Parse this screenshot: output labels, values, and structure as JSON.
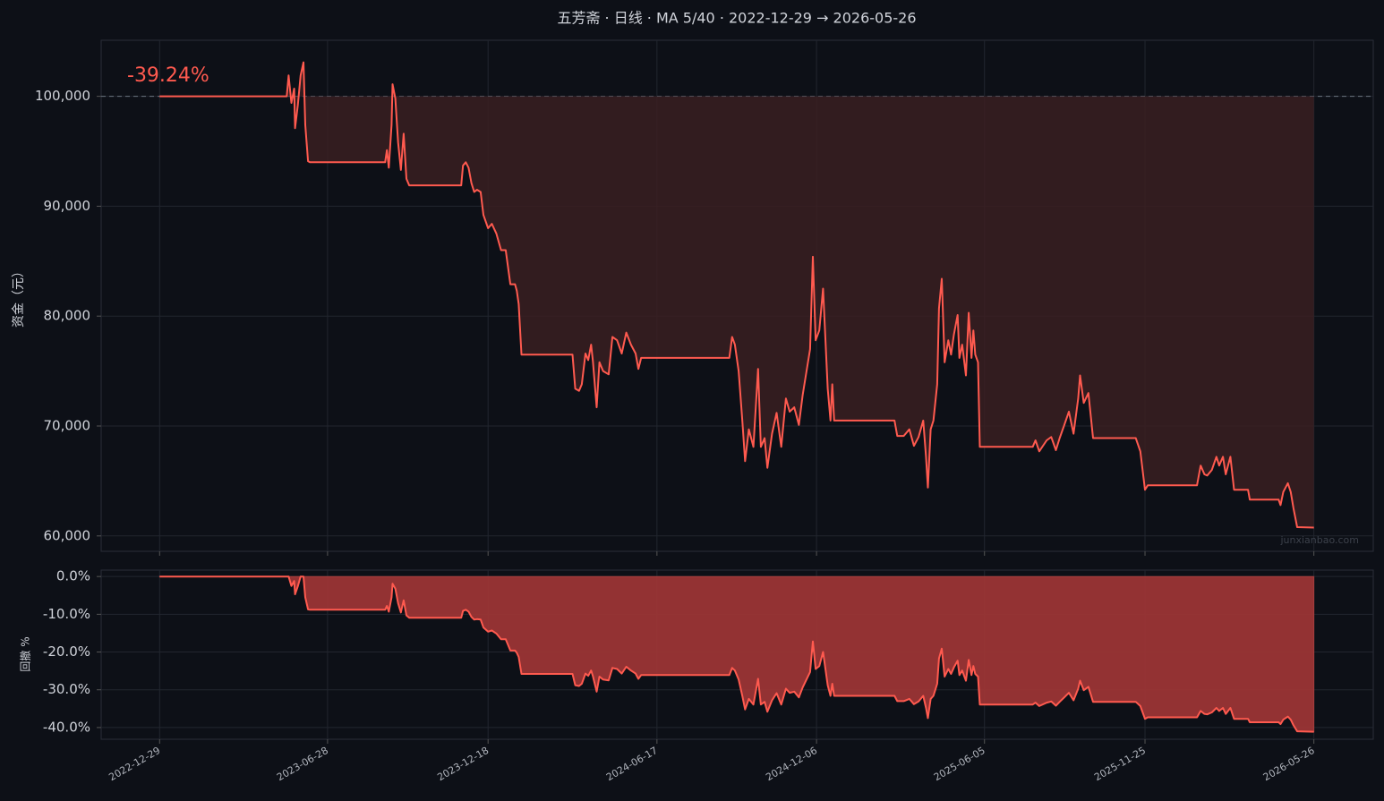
{
  "chart_data": [
    {
      "type": "area",
      "title": "五芳斋 · 日线 · MA 5/40 · 2022-12-29 → 2026-05-26",
      "ylabel": "资金（元）",
      "annotation": "-39.24%",
      "watermark": "junxianbao.com",
      "baseline": 100000,
      "grid": true,
      "xlim": [
        "2022-10-27",
        "2026-07-29"
      ],
      "ylim": [
        58600,
        105100
      ],
      "xticks": [
        "2022-12-29",
        "2023-06-28",
        "2023-12-18",
        "2024-06-17",
        "2024-12-06",
        "2025-06-05",
        "2025-11-25",
        "2026-05-26"
      ],
      "yticks": [
        {
          "value": 60000,
          "label": "60,000"
        },
        {
          "value": 70000,
          "label": "70,000"
        },
        {
          "value": 80000,
          "label": "80,000"
        },
        {
          "value": 90000,
          "label": "90,000"
        },
        {
          "value": 100000,
          "label": "100,000"
        }
      ],
      "x": [
        "2022-12-29",
        "2023-05-15",
        "2023-05-17",
        "2023-05-20",
        "2023-05-23",
        "2023-05-24",
        "2023-05-27",
        "2023-05-30",
        "2023-06-02",
        "2023-06-04",
        "2023-06-07",
        "2023-06-09",
        "2023-08-29",
        "2023-08-31",
        "2023-09-02",
        "2023-09-05",
        "2023-09-06",
        "2023-09-09",
        "2023-09-12",
        "2023-09-15",
        "2023-09-18",
        "2023-09-21",
        "2023-09-24",
        "2023-11-19",
        "2023-11-21",
        "2023-11-24",
        "2023-11-27",
        "2023-11-30",
        "2023-12-03",
        "2023-12-06",
        "2023-12-10",
        "2023-12-13",
        "2023-12-18",
        "2023-12-22",
        "2023-12-27",
        "2024-01-01",
        "2024-01-06",
        "2024-01-11",
        "2024-01-16",
        "2024-01-18",
        "2024-01-20",
        "2024-01-23",
        "2024-03-18",
        "2024-03-21",
        "2024-03-25",
        "2024-03-28",
        "2024-04-01",
        "2024-04-04",
        "2024-04-07",
        "2024-04-09",
        "2024-04-13",
        "2024-04-16",
        "2024-04-20",
        "2024-04-26",
        "2024-04-30",
        "2024-05-05",
        "2024-05-10",
        "2024-05-15",
        "2024-05-20",
        "2024-05-25",
        "2024-05-28",
        "2024-05-31",
        "2024-06-03",
        "2024-09-03",
        "2024-09-06",
        "2024-09-09",
        "2024-09-13",
        "2024-09-17",
        "2024-09-20",
        "2024-09-24",
        "2024-09-29",
        "2024-10-04",
        "2024-10-07",
        "2024-10-11",
        "2024-10-14",
        "2024-10-19",
        "2024-10-24",
        "2024-10-29",
        "2024-11-03",
        "2024-11-07",
        "2024-11-12",
        "2024-11-17",
        "2024-11-21",
        "2024-11-29",
        "2024-12-02",
        "2024-12-05",
        "2024-12-09",
        "2024-12-13",
        "2024-12-18",
        "2024-12-21",
        "2024-12-23",
        "2024-12-25",
        "2025-02-28",
        "2025-03-03",
        "2025-03-10",
        "2025-03-16",
        "2025-03-21",
        "2025-03-26",
        "2025-03-31",
        "2025-04-03",
        "2025-04-05",
        "2025-04-08",
        "2025-04-11",
        "2025-04-15",
        "2025-04-17",
        "2025-04-20",
        "2025-04-23",
        "2025-04-27",
        "2025-04-30",
        "2025-05-03",
        "2025-05-07",
        "2025-05-09",
        "2025-05-12",
        "2025-05-16",
        "2025-05-19",
        "2025-05-22",
        "2025-05-24",
        "2025-05-26",
        "2025-05-29",
        "2025-05-31",
        "2025-07-27",
        "2025-07-30",
        "2025-08-03",
        "2025-08-11",
        "2025-08-16",
        "2025-08-21",
        "2025-08-25",
        "2025-08-30",
        "2025-09-04",
        "2025-09-09",
        "2025-09-14",
        "2025-09-16",
        "2025-09-20",
        "2025-09-25",
        "2025-09-30",
        "2025-11-15",
        "2025-11-20",
        "2025-11-25",
        "2025-11-28",
        "2026-01-20",
        "2026-01-24",
        "2026-01-28",
        "2026-01-31",
        "2026-02-05",
        "2026-02-10",
        "2026-02-13",
        "2026-02-17",
        "2026-02-20",
        "2026-02-25",
        "2026-03-01",
        "2026-03-16",
        "2026-03-18",
        "2026-04-18",
        "2026-04-20",
        "2026-04-23",
        "2026-04-28",
        "2026-05-01",
        "2026-05-04",
        "2026-05-08",
        "2026-05-26"
      ],
      "series": [
        {
          "color": "#ff5a4f",
          "fill": "#3a1e21",
          "values": [
            100000,
            100000,
            101900,
            99400,
            100700,
            97100,
            99200,
            101900,
            103100,
            97400,
            94100,
            94000,
            94000,
            95100,
            93500,
            97400,
            101100,
            99800,
            95800,
            93300,
            96600,
            92500,
            91900,
            91900,
            93700,
            94000,
            93500,
            92100,
            91300,
            91500,
            91300,
            89200,
            88000,
            88400,
            87500,
            86000,
            86000,
            82900,
            82900,
            82300,
            81100,
            76500,
            76500,
            73400,
            73200,
            73800,
            76600,
            76000,
            77400,
            75900,
            71700,
            75800,
            75000,
            74700,
            78100,
            77800,
            76600,
            78500,
            77400,
            76600,
            75200,
            76200,
            76200,
            76200,
            78100,
            77400,
            75000,
            70500,
            66800,
            69700,
            68100,
            75200,
            68100,
            68900,
            66200,
            69300,
            71200,
            68100,
            72500,
            71300,
            71700,
            70100,
            72800,
            77000,
            85400,
            77800,
            78700,
            82500,
            73400,
            70500,
            73800,
            70500,
            70500,
            69100,
            69100,
            69700,
            68200,
            69000,
            70500,
            67200,
            64400,
            69700,
            70500,
            73800,
            80700,
            83400,
            75800,
            77800,
            76500,
            78300,
            80100,
            76200,
            77400,
            74600,
            80300,
            76200,
            78700,
            76500,
            75800,
            68100,
            68100,
            68700,
            67700,
            68700,
            69000,
            67800,
            68900,
            70100,
            71300,
            69300,
            72500,
            74600,
            72100,
            73000,
            68900,
            68900,
            67700,
            64200,
            64600,
            64600,
            66400,
            65600,
            65500,
            66000,
            67200,
            66400,
            67200,
            65600,
            67200,
            64200,
            64200,
            63300,
            63300,
            62800,
            64000,
            64800,
            64000,
            62500,
            60800,
            60760
          ]
        }
      ]
    },
    {
      "type": "area",
      "ylabel": "回撤 %",
      "baseline": 0,
      "grid": true,
      "xlim": [
        "2022-10-27",
        "2026-07-29"
      ],
      "ylim": [
        -43.1,
        1.7
      ],
      "yticks": [
        {
          "value": -40,
          "label": "-40.0%"
        },
        {
          "value": -30,
          "label": "-30.0%"
        },
        {
          "value": -20,
          "label": "-20.0%"
        },
        {
          "value": -10,
          "label": "-10.0%"
        },
        {
          "value": 0,
          "label": "0.0%"
        }
      ],
      "x": [
        "2022-12-29",
        "2023-05-15",
        "2023-05-17",
        "2023-05-20",
        "2023-05-23",
        "2023-05-24",
        "2023-05-27",
        "2023-05-30",
        "2023-06-02",
        "2023-06-04",
        "2023-06-07",
        "2023-06-09",
        "2023-08-29",
        "2023-08-31",
        "2023-09-02",
        "2023-09-05",
        "2023-09-06",
        "2023-09-09",
        "2023-09-12",
        "2023-09-15",
        "2023-09-18",
        "2023-09-21",
        "2023-09-24",
        "2023-11-19",
        "2023-11-21",
        "2023-11-24",
        "2023-11-27",
        "2023-11-30",
        "2023-12-03",
        "2023-12-06",
        "2023-12-10",
        "2023-12-13",
        "2023-12-18",
        "2023-12-22",
        "2023-12-27",
        "2024-01-01",
        "2024-01-06",
        "2024-01-11",
        "2024-01-16",
        "2024-01-18",
        "2024-01-20",
        "2024-01-23",
        "2024-03-18",
        "2024-03-21",
        "2024-03-25",
        "2024-03-28",
        "2024-04-01",
        "2024-04-04",
        "2024-04-07",
        "2024-04-09",
        "2024-04-13",
        "2024-04-16",
        "2024-04-20",
        "2024-04-26",
        "2024-04-30",
        "2024-05-05",
        "2024-05-10",
        "2024-05-15",
        "2024-05-20",
        "2024-05-25",
        "2024-05-28",
        "2024-05-31",
        "2024-06-03",
        "2024-09-03",
        "2024-09-06",
        "2024-09-09",
        "2024-09-13",
        "2024-09-17",
        "2024-09-20",
        "2024-09-24",
        "2024-09-29",
        "2024-10-04",
        "2024-10-07",
        "2024-10-11",
        "2024-10-14",
        "2024-10-19",
        "2024-10-24",
        "2024-10-29",
        "2024-11-03",
        "2024-11-07",
        "2024-11-12",
        "2024-11-17",
        "2024-11-21",
        "2024-11-29",
        "2024-12-02",
        "2024-12-05",
        "2024-12-09",
        "2024-12-13",
        "2024-12-18",
        "2024-12-21",
        "2024-12-23",
        "2024-12-25",
        "2025-02-28",
        "2025-03-03",
        "2025-03-10",
        "2025-03-16",
        "2025-03-21",
        "2025-03-26",
        "2025-03-31",
        "2025-04-03",
        "2025-04-05",
        "2025-04-08",
        "2025-04-11",
        "2025-04-15",
        "2025-04-17",
        "2025-04-20",
        "2025-04-23",
        "2025-04-27",
        "2025-04-30",
        "2025-05-03",
        "2025-05-07",
        "2025-05-09",
        "2025-05-12",
        "2025-05-16",
        "2025-05-19",
        "2025-05-22",
        "2025-05-24",
        "2025-05-26",
        "2025-05-29",
        "2025-05-31",
        "2025-07-27",
        "2025-07-30",
        "2025-08-03",
        "2025-08-11",
        "2025-08-16",
        "2025-08-21",
        "2025-08-25",
        "2025-08-30",
        "2025-09-04",
        "2025-09-09",
        "2025-09-14",
        "2025-09-16",
        "2025-09-20",
        "2025-09-25",
        "2025-09-30",
        "2025-11-15",
        "2025-11-20",
        "2025-11-25",
        "2025-11-28",
        "2026-01-20",
        "2026-01-24",
        "2026-01-28",
        "2026-01-31",
        "2026-02-05",
        "2026-02-10",
        "2026-02-13",
        "2026-02-17",
        "2026-02-20",
        "2026-02-25",
        "2026-03-01",
        "2026-03-16",
        "2026-03-18",
        "2026-04-18",
        "2026-04-20",
        "2026-04-23",
        "2026-04-28",
        "2026-05-01",
        "2026-05-04",
        "2026-05-08",
        "2026-05-26"
      ],
      "series": [
        {
          "color": "#ff5a4f",
          "fill": "#9b3535",
          "values": [
            0,
            0,
            0,
            -2.5,
            -1.2,
            -4.7,
            -2.6,
            0,
            0,
            -5.5,
            -8.7,
            -8.8,
            -8.8,
            -7.8,
            -9.3,
            -5.5,
            -1.9,
            -3.2,
            -7.1,
            -9.5,
            -6.3,
            -10.3,
            -10.9,
            -10.9,
            -9.1,
            -8.8,
            -9.3,
            -10.7,
            -11.4,
            -11.3,
            -11.4,
            -13.5,
            -14.6,
            -14.3,
            -15.1,
            -16.6,
            -16.6,
            -19.6,
            -19.6,
            -20.2,
            -21.3,
            -25.8,
            -25.8,
            -28.8,
            -29.0,
            -28.4,
            -25.7,
            -26.3,
            -24.9,
            -26.4,
            -30.5,
            -26.5,
            -27.3,
            -27.5,
            -24.2,
            -24.5,
            -25.7,
            -23.9,
            -24.9,
            -25.7,
            -27.1,
            -26.1,
            -26.1,
            -26.1,
            -24.2,
            -24.9,
            -27.3,
            -31.6,
            -35.2,
            -32.4,
            -33.9,
            -27.1,
            -33.9,
            -33.2,
            -35.8,
            -32.8,
            -30.9,
            -33.9,
            -29.7,
            -30.8,
            -30.5,
            -32.0,
            -29.4,
            -25.3,
            -17.2,
            -24.5,
            -23.7,
            -20.0,
            -28.8,
            -31.6,
            -28.4,
            -31.6,
            -31.6,
            -33.0,
            -33.0,
            -32.4,
            -33.8,
            -33.1,
            -31.6,
            -34.8,
            -37.5,
            -32.4,
            -31.6,
            -28.4,
            -21.7,
            -19.1,
            -26.5,
            -24.5,
            -25.8,
            -24.1,
            -22.3,
            -26.1,
            -24.9,
            -27.6,
            -22.1,
            -26.1,
            -23.7,
            -25.8,
            -26.5,
            -33.9,
            -33.9,
            -33.4,
            -34.3,
            -33.4,
            -33.1,
            -34.2,
            -33.2,
            -32.0,
            -30.8,
            -32.8,
            -29.7,
            -27.6,
            -30.1,
            -29.2,
            -33.2,
            -33.2,
            -34.3,
            -37.7,
            -37.3,
            -37.3,
            -35.6,
            -36.4,
            -36.5,
            -36.0,
            -34.8,
            -35.6,
            -34.8,
            -36.4,
            -34.8,
            -37.7,
            -37.7,
            -38.6,
            -38.6,
            -39.1,
            -37.9,
            -37.1,
            -37.9,
            -39.4,
            -41.0,
            -41.1
          ]
        }
      ]
    }
  ]
}
